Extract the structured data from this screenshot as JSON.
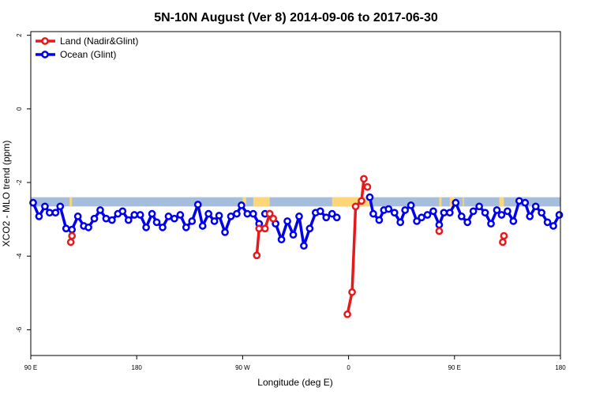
{
  "chart_data": {
    "type": "line",
    "title": "5N-10N August (Ver 8)   2014-09-06 to 2017-06-30",
    "xlabel": "Longitude (deg E)",
    "ylabel": "XCO2 - MLO trend (ppm)",
    "xlim": [
      90,
      540
    ],
    "ylim": [
      -6.7,
      2.1
    ],
    "x_ticks": [
      {
        "value": 90,
        "label": "90 E"
      },
      {
        "value": 180,
        "label": "180"
      },
      {
        "value": 270,
        "label": "90 W"
      },
      {
        "value": 360,
        "label": "0"
      },
      {
        "value": 450,
        "label": "90 E"
      },
      {
        "value": 540,
        "label": "180"
      }
    ],
    "y_ticks": [
      {
        "value": 2,
        "label": "2"
      },
      {
        "value": 0,
        "label": "0"
      },
      {
        "value": -2,
        "label": "-2"
      },
      {
        "value": -4,
        "label": "-4"
      },
      {
        "value": -6,
        "label": "-6"
      }
    ],
    "legend": {
      "position": "top-left"
    },
    "background_band": {
      "y_range": [
        -2.65,
        -2.4
      ],
      "sea_color": "#a6bddb",
      "land_color": "#fdd67a"
    },
    "series": [
      {
        "name": "Land (Nadir&Glint)",
        "color": "#e41a1c",
        "segments": [
          {
            "x": [
              124,
              125
            ],
            "y": [
              -3.62,
              -3.45
            ]
          },
          {
            "x": [
              282,
              284,
              289,
              293,
              296
            ],
            "y": [
              -3.98,
              -3.25,
              -3.25,
              -2.85,
              -2.98
            ]
          },
          {
            "x": [
              359,
              363,
              366,
              371,
              373
            ],
            "y": [
              -5.58,
              -4.98,
              -2.65,
              -2.5,
              -1.9
            ]
          },
          {
            "x": [
              376
            ],
            "y": [
              -2.12
            ]
          },
          {
            "x": [
              437
            ],
            "y": [
              -3.32
            ]
          },
          {
            "x": [
              491,
              492
            ],
            "y": [
              -3.62,
              -3.45
            ]
          }
        ]
      },
      {
        "name": "Ocean (Glint)",
        "color": "#0000ee",
        "segments": [
          {
            "x": [
              92,
              97,
              102,
              106,
              111,
              115,
              120,
              125,
              130,
              135,
              139,
              144,
              149,
              154,
              159,
              164,
              168,
              173,
              178,
              183,
              188,
              193,
              197,
              202,
              207,
              212,
              217,
              222,
              227,
              232,
              236,
              241,
              246,
              250,
              255,
              260,
              265,
              269,
              274,
              279,
              284
            ],
            "y": [
              -2.55,
              -2.92,
              -2.65,
              -2.82,
              -2.82,
              -2.65,
              -3.25,
              -3.28,
              -2.92,
              -3.18,
              -3.22,
              -2.98,
              -2.75,
              -2.98,
              -3.02,
              -2.85,
              -2.78,
              -3.02,
              -2.88,
              -2.88,
              -3.22,
              -2.85,
              -3.08,
              -3.22,
              -2.92,
              -2.98,
              -2.88,
              -3.22,
              -3.05,
              -2.6,
              -3.18,
              -2.85,
              -3.05,
              -2.9,
              -3.35,
              -2.92,
              -2.85,
              -2.62,
              -2.85,
              -2.85,
              -3.12
            ]
          },
          {
            "x": [
              289,
              293,
              298,
              303,
              308,
              313,
              318,
              322,
              327,
              332,
              336,
              341,
              346,
              350
            ],
            "y": [
              -2.85,
              -2.85,
              -3.12,
              -3.55,
              -3.05,
              -3.42,
              -2.92,
              -3.72,
              -3.25,
              -2.82,
              -2.78,
              -2.95,
              -2.85,
              -2.95
            ]
          },
          {
            "x": [
              378,
              381,
              386,
              390,
              394,
              399,
              404,
              408,
              413,
              418,
              422,
              427,
              432,
              437,
              441,
              446,
              451,
              456,
              461,
              466,
              471,
              476,
              481,
              486,
              490,
              495,
              500,
              505,
              510,
              514,
              519,
              524,
              529,
              534,
              539
            ],
            "y": [
              -2.4,
              -2.85,
              -3.02,
              -2.75,
              -2.72,
              -2.82,
              -3.08,
              -2.75,
              -2.62,
              -3.05,
              -2.95,
              -2.88,
              -2.78,
              -3.15,
              -2.82,
              -2.82,
              -2.55,
              -2.92,
              -3.08,
              -2.78,
              -2.65,
              -2.82,
              -3.12,
              -2.75,
              -2.88,
              -2.78,
              -3.05,
              -2.5,
              -2.55,
              -2.92,
              -2.65,
              -2.82,
              -3.08,
              -3.18,
              -2.88
            ]
          }
        ]
      }
    ]
  }
}
